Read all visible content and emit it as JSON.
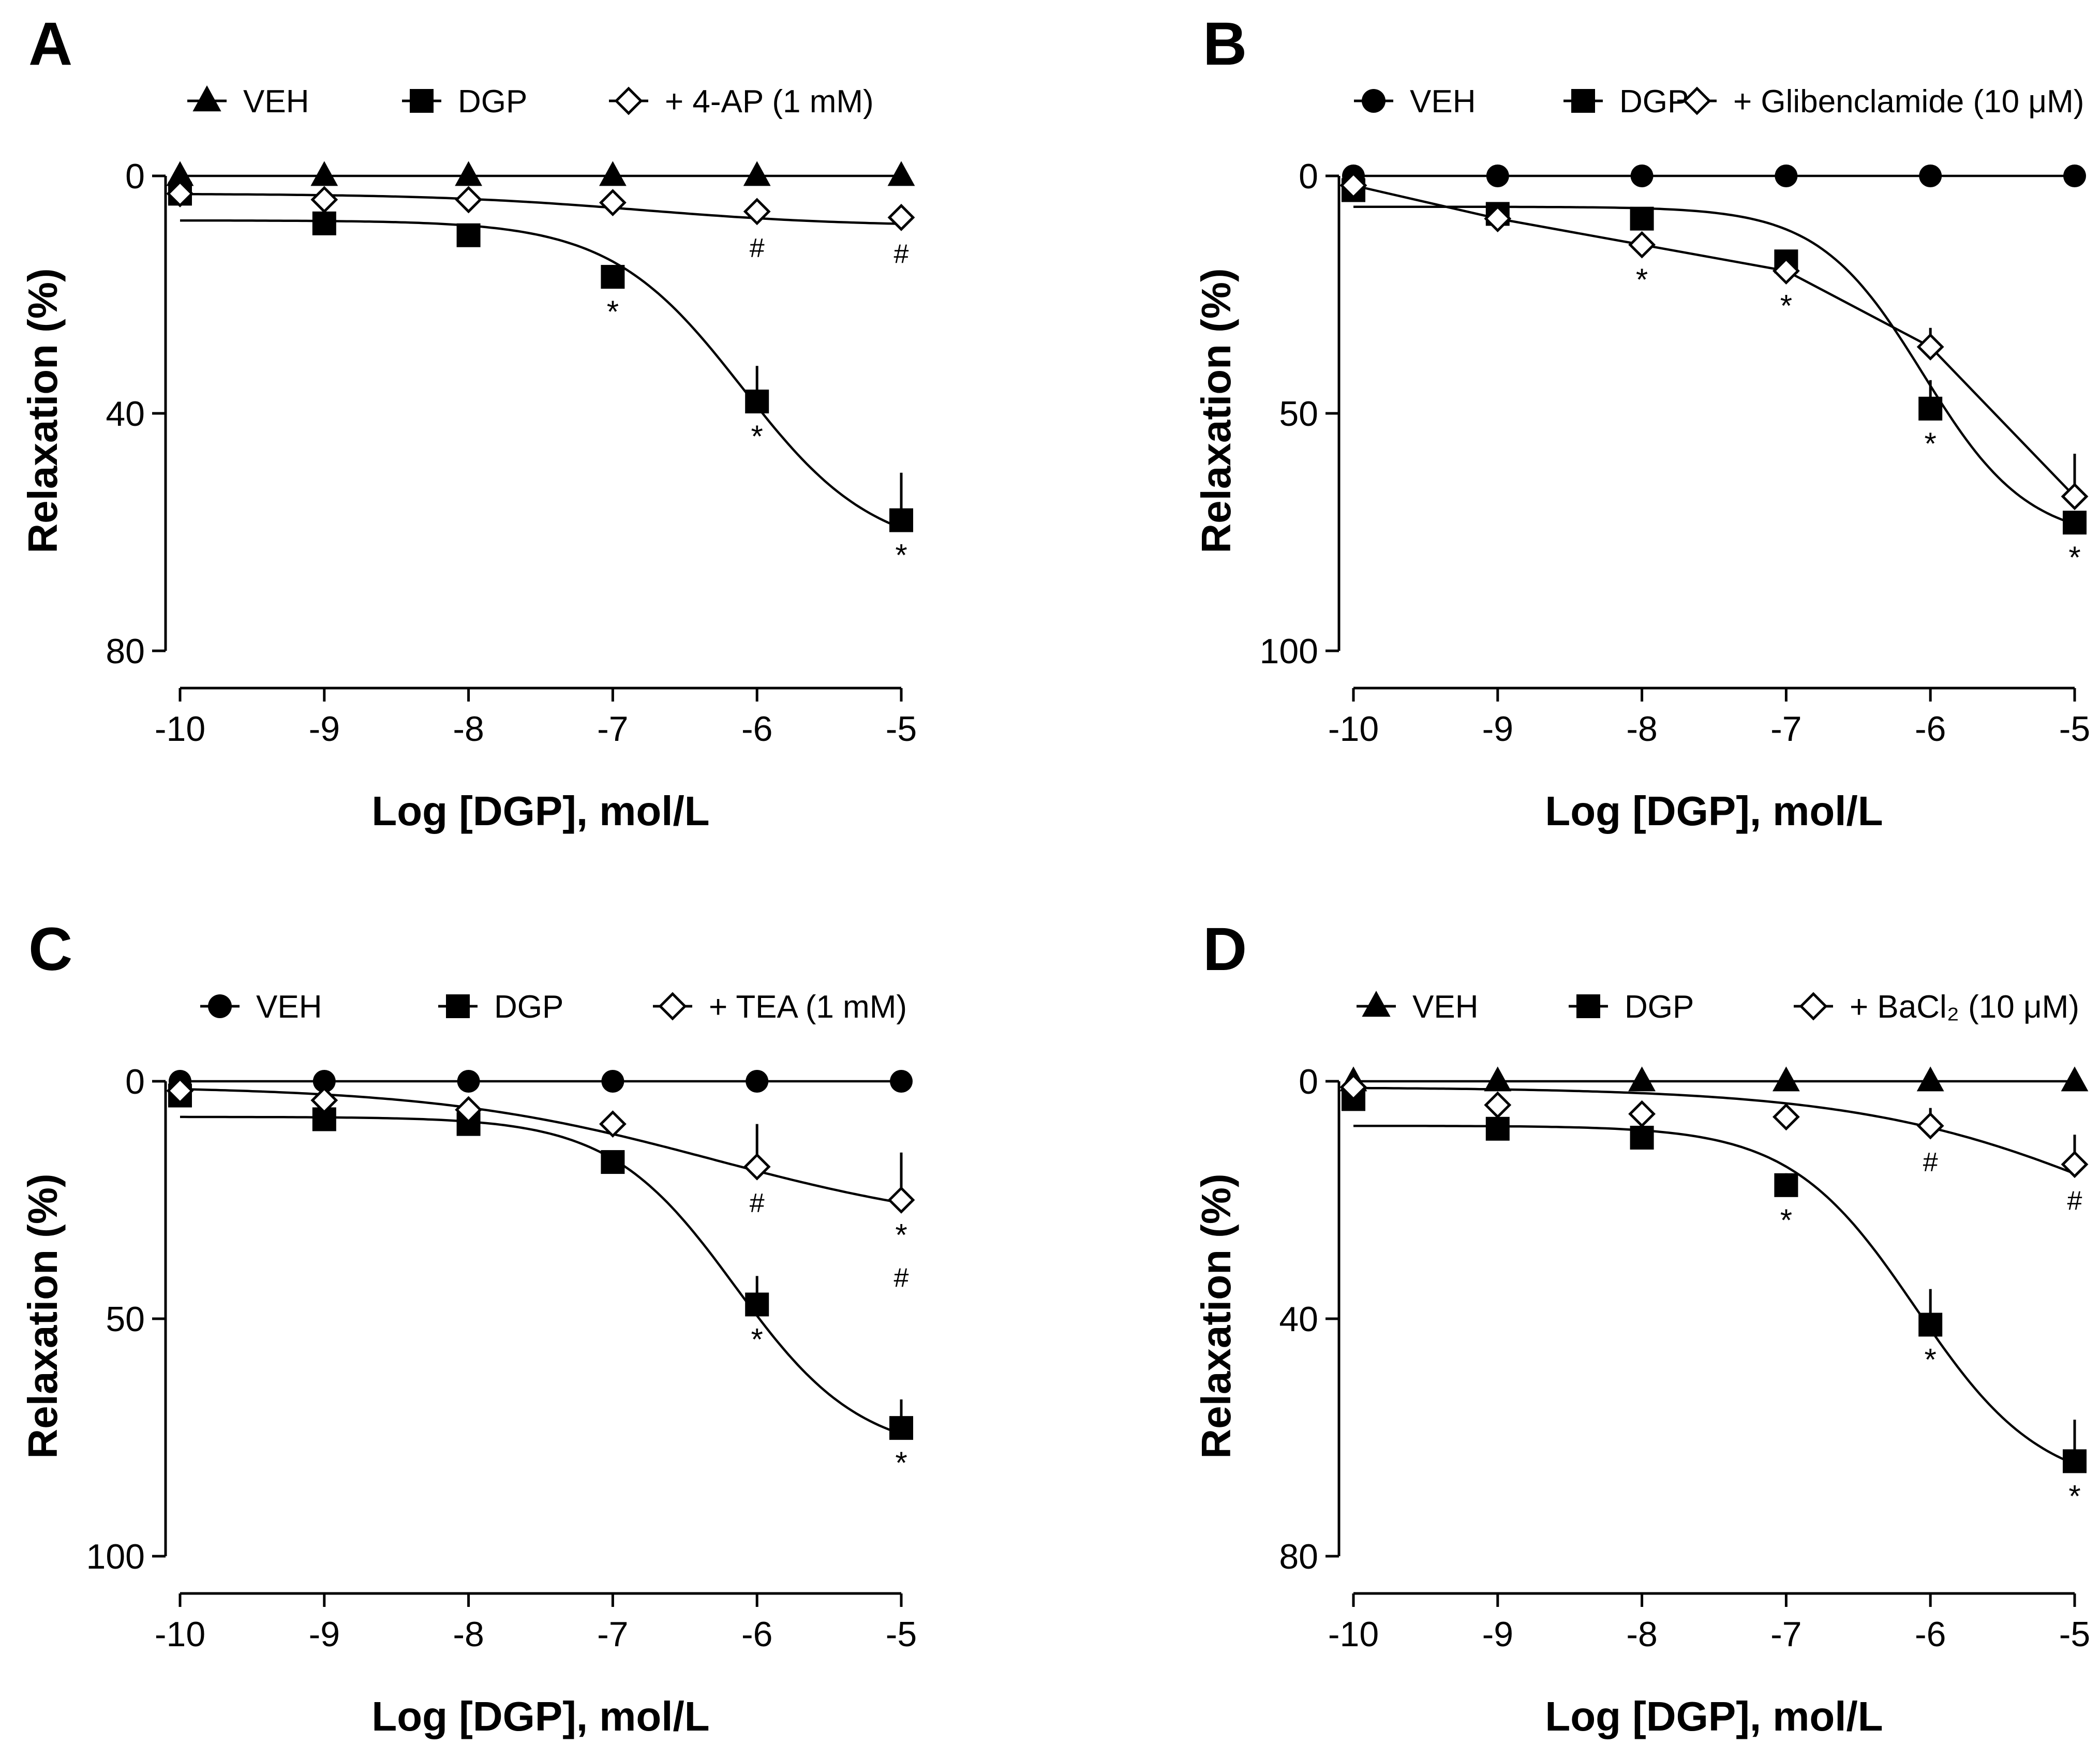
{
  "figure": {
    "line_color": "#000000",
    "background": "#ffffff"
  },
  "chart_data": [
    {
      "panel": "A",
      "type": "line",
      "xlabel": "Log [DGP], mol/L",
      "ylabel": "Relaxation (%)",
      "xlim": [
        -10,
        -5
      ],
      "ylim": [
        0,
        80
      ],
      "y_inverted": true,
      "x_ticks": [
        "-10",
        "-9",
        "-8",
        "-7",
        "-6",
        "-5"
      ],
      "y_ticks": [
        "0",
        "40",
        "80"
      ],
      "y_tick_values": [
        0,
        40,
        80
      ],
      "legend_position": "top",
      "x": [
        -10,
        -9,
        -8,
        -7,
        -6,
        -5
      ],
      "series": [
        {
          "name": "VEH",
          "marker": "triangle",
          "values": [
            0,
            0,
            0,
            0,
            0,
            0
          ],
          "errors": [
            0,
            0,
            0,
            0,
            0,
            0
          ],
          "fit": "line",
          "marks": [
            null,
            null,
            null,
            null,
            null,
            null
          ]
        },
        {
          "name": "DGP",
          "marker": "square",
          "values": [
            3,
            8,
            10,
            17,
            38,
            58
          ],
          "errors": [
            1,
            1,
            1,
            2,
            6,
            8
          ],
          "fit": "sigmoid",
          "fit_params": {
            "bottom": 7.5,
            "top": 64,
            "logec50": -6.1,
            "hill": 0.95
          },
          "marks": [
            null,
            null,
            null,
            "*",
            "*",
            "*"
          ]
        },
        {
          "name": "+ 4-AP (1 mM)",
          "marker": "diamond",
          "values": [
            3,
            4,
            4,
            4.5,
            6,
            7
          ],
          "errors": [
            0,
            0,
            0,
            0,
            0,
            0
          ],
          "fit": "sigmoid",
          "fit_params": {
            "bottom": 3,
            "top": 8.5,
            "logec50": -6.8,
            "hill": 0.6
          },
          "marks": [
            null,
            null,
            null,
            null,
            "#",
            "#"
          ]
        }
      ]
    },
    {
      "panel": "B",
      "type": "line",
      "xlabel": "Log [DGP], mol/L",
      "ylabel": "Relaxation (%)",
      "xlim": [
        -10,
        -5
      ],
      "ylim": [
        0,
        100
      ],
      "y_inverted": true,
      "x_ticks": [
        "-10",
        "-9",
        "-8",
        "-7",
        "-6",
        "-5"
      ],
      "y_ticks": [
        "0",
        "50",
        "100"
      ],
      "y_tick_values": [
        0,
        50,
        100
      ],
      "legend_position": "top",
      "x": [
        -10,
        -9,
        -8,
        -7,
        -6,
        -5
      ],
      "series": [
        {
          "name": "VEH",
          "marker": "circle",
          "values": [
            0,
            0,
            0,
            0,
            0,
            0
          ],
          "errors": [
            0,
            0,
            0,
            0,
            0,
            0
          ],
          "fit": "line",
          "marks": [
            null,
            null,
            null,
            null,
            null,
            null
          ]
        },
        {
          "name": "DGP",
          "marker": "square",
          "values": [
            3,
            8,
            9,
            18,
            49,
            73
          ],
          "errors": [
            0,
            1,
            1,
            2,
            6,
            0
          ],
          "fit": "sigmoid",
          "fit_params": {
            "bottom": 6.5,
            "top": 77,
            "logec50": -6.05,
            "hill": 1.2
          },
          "marks": [
            null,
            null,
            null,
            null,
            "*",
            "*"
          ]
        },
        {
          "name": "+ Glibenclamide (10 μM)",
          "marker": "diamond",
          "values": [
            2,
            9,
            14.5,
            20,
            36,
            67.5
          ],
          "errors": [
            0,
            0,
            0,
            0,
            4,
            9
          ],
          "fit": "line",
          "marks": [
            null,
            null,
            "*",
            "*",
            null,
            null
          ]
        }
      ]
    },
    {
      "panel": "C",
      "type": "line",
      "xlabel": "Log [DGP], mol/L",
      "ylabel": "Relaxation (%)",
      "xlim": [
        -10,
        -5
      ],
      "ylim": [
        0,
        100
      ],
      "y_inverted": true,
      "x_ticks": [
        "-10",
        "-9",
        "-8",
        "-7",
        "-6",
        "-5"
      ],
      "y_ticks": [
        "0",
        "50",
        "100"
      ],
      "y_tick_values": [
        0,
        50,
        100
      ],
      "legend_position": "top",
      "x": [
        -10,
        -9,
        -8,
        -7,
        -6,
        -5
      ],
      "series": [
        {
          "name": "VEH",
          "marker": "circle",
          "values": [
            0,
            0,
            0,
            0,
            0,
            0
          ],
          "errors": [
            0,
            0,
            0,
            0,
            0,
            0
          ],
          "fit": "line",
          "marks": [
            null,
            null,
            null,
            null,
            null,
            null
          ]
        },
        {
          "name": "DGP",
          "marker": "square",
          "values": [
            3,
            8,
            9,
            17,
            47,
            73
          ],
          "errors": [
            1,
            1,
            1,
            2,
            6,
            6
          ],
          "fit": "sigmoid",
          "fit_params": {
            "bottom": 7.5,
            "top": 79,
            "logec50": -6.15,
            "hill": 1.0
          },
          "marks": [
            null,
            null,
            null,
            null,
            "*",
            "*"
          ]
        },
        {
          "name": "+ TEA (1 mM)",
          "marker": "diamond",
          "values": [
            2,
            4,
            6,
            9,
            18,
            25
          ],
          "errors": [
            0,
            0,
            0,
            0,
            9,
            10
          ],
          "fit": "sigmoid",
          "fit_params": {
            "bottom": 1,
            "top": 32,
            "logec50": -6.3,
            "hill": 0.45
          },
          "marks": [
            null,
            null,
            null,
            null,
            "#",
            "*\n#"
          ]
        }
      ]
    },
    {
      "panel": "D",
      "type": "line",
      "xlabel": "Log [DGP], mol/L",
      "ylabel": "Relaxation (%)",
      "xlim": [
        -10,
        -5
      ],
      "ylim": [
        0,
        80
      ],
      "y_inverted": true,
      "x_ticks": [
        "-10",
        "-9",
        "-8",
        "-7",
        "-6",
        "-5"
      ],
      "y_ticks": [
        "0",
        "40",
        "80"
      ],
      "y_tick_values": [
        0,
        40,
        80
      ],
      "legend_position": "top",
      "x": [
        -10,
        -9,
        -8,
        -7,
        -6,
        -5
      ],
      "series": [
        {
          "name": "VEH",
          "marker": "triangle",
          "values": [
            0,
            0,
            0,
            0,
            0,
            0
          ],
          "errors": [
            0,
            0,
            0,
            0,
            0,
            0
          ],
          "fit": "line",
          "marks": [
            null,
            null,
            null,
            null,
            null,
            null
          ]
        },
        {
          "name": "DGP",
          "marker": "square",
          "values": [
            3,
            8,
            9.5,
            17.5,
            41,
            64
          ],
          "errors": [
            0,
            1,
            1,
            2,
            6,
            7
          ],
          "fit": "sigmoid",
          "fit_params": {
            "bottom": 7.5,
            "top": 69,
            "logec50": -6.1,
            "hill": 1.0
          },
          "marks": [
            null,
            null,
            null,
            "*",
            "*",
            "*"
          ]
        },
        {
          "name": "+ BaCl₂ (10 μM)",
          "marker": "diamond",
          "values": [
            1,
            4,
            5.5,
            6,
            7.5,
            14
          ],
          "errors": [
            0,
            0,
            0,
            0,
            3,
            5
          ],
          "fit": "sigmoid",
          "fit_params": {
            "bottom": 1,
            "top": 40,
            "logec50": -4.5,
            "hill": 0.45
          },
          "marks": [
            null,
            null,
            null,
            null,
            "#",
            "#"
          ]
        }
      ]
    }
  ]
}
